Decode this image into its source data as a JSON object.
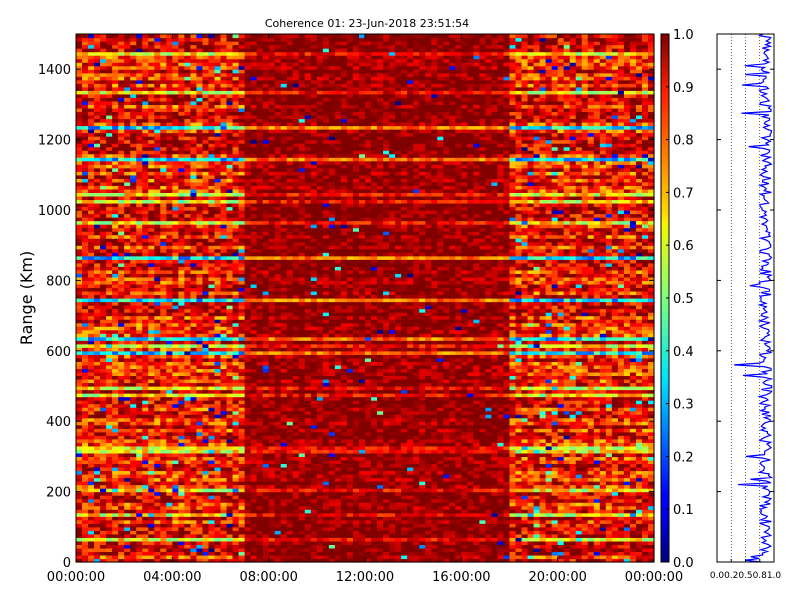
{
  "chart_data": [
    {
      "type": "heatmap",
      "title": "Coherence 01: 23-Jun-2018 23:51:54",
      "xlabel": "",
      "ylabel": "Range (Km)",
      "x_tick_labels": [
        "00:00:00",
        "04:00:00",
        "08:00:00",
        "12:00:00",
        "16:00:00",
        "20:00:00",
        "00:00:00"
      ],
      "y_tick_labels": [
        "0",
        "200",
        "400",
        "600",
        "800",
        "1000",
        "1200",
        "1400"
      ],
      "y_ticks": [
        0,
        200,
        400,
        600,
        800,
        1000,
        1200,
        1400
      ],
      "ylim": [
        0,
        1500
      ],
      "xlim_hours": [
        0,
        24
      ],
      "colormap": "jet",
      "color_range": [
        0.0,
        1.0
      ],
      "high_coherence_window_hours": [
        7.0,
        18.0
      ],
      "colorbar": {
        "tick_labels": [
          "0.0",
          "0.1",
          "0.2",
          "0.3",
          "0.4",
          "0.5",
          "0.6",
          "0.7",
          "0.8",
          "0.9",
          "1.0"
        ],
        "ticks": [
          0.0,
          0.1,
          0.2,
          0.3,
          0.4,
          0.5,
          0.6,
          0.7,
          0.8,
          0.9,
          1.0
        ]
      }
    },
    {
      "type": "line",
      "title": "",
      "xlabel": "",
      "ylabel": "",
      "x_tick_labels": [
        "0.0",
        "0.2",
        "0.5",
        "0.8",
        "1.0"
      ],
      "x_ticks": [
        0.0,
        0.25,
        0.5,
        0.75,
        1.0
      ],
      "xlim": [
        0,
        1
      ],
      "ylim": [
        0,
        1500
      ],
      "series_color": "#0000ff",
      "grid": "vertical dotted"
    }
  ]
}
